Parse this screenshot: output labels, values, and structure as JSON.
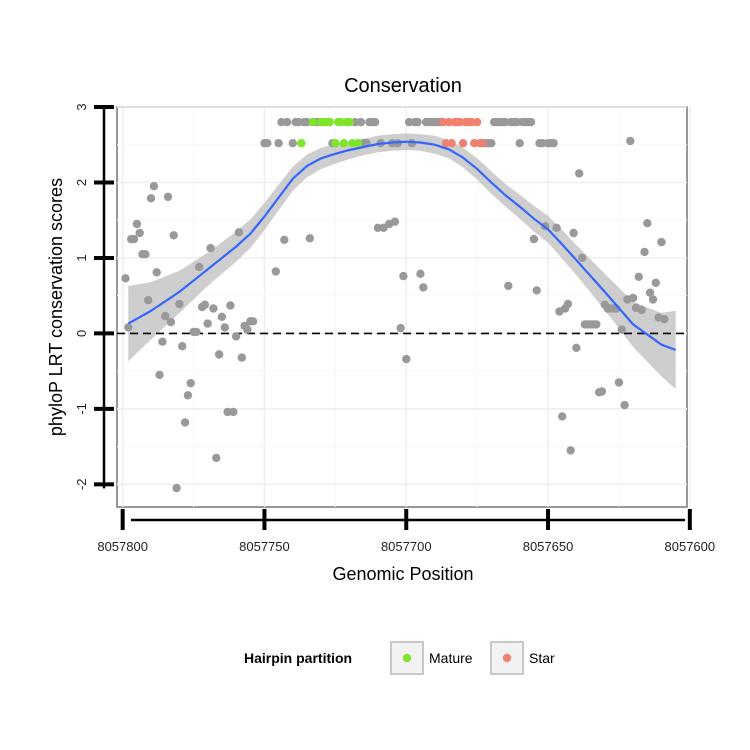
{
  "chart_data": {
    "type": "scatter",
    "title": "Conservation",
    "xlabel": "Genomic Position",
    "ylabel": "phyloP LRT conservation scores",
    "xlim": [
      8057802,
      8057601
    ],
    "ylim": [
      -2.3,
      3.0
    ],
    "x_reversed": true,
    "x_ticks": [
      8057800,
      8057750,
      8057700,
      8057650,
      8057600
    ],
    "x_tick_labels": [
      "8057800",
      "8057750",
      "8057700",
      "8057650",
      "8057600"
    ],
    "y_ticks": [
      3,
      2,
      1,
      0,
      -1,
      -2
    ],
    "y_tick_labels": [
      "3",
      "2",
      "1",
      "0",
      "-1",
      "-2"
    ],
    "reference_line": {
      "y": 0,
      "style": "dashed"
    },
    "colors": {
      "other": "#999999",
      "mature": "#7fe52a",
      "star": "#f08070",
      "smooth_line": "#3366ff",
      "confidence_band": "#bdbdbd"
    },
    "legend": {
      "title": "Hairpin partition",
      "position": "bottom",
      "entries": [
        {
          "label": "Mature",
          "color": "#7fe52a"
        },
        {
          "label": "Star",
          "color": "#f08070"
        }
      ]
    },
    "series": [
      {
        "name": "Other",
        "points": [
          [
            8057799,
            0.73
          ],
          [
            8057798,
            0.08
          ],
          [
            8057797,
            1.25
          ],
          [
            8057796,
            1.25
          ],
          [
            8057795,
            1.45
          ],
          [
            8057794,
            1.33
          ],
          [
            8057793,
            1.05
          ],
          [
            8057792,
            1.05
          ],
          [
            8057791,
            0.44
          ],
          [
            8057790,
            1.79
          ],
          [
            8057789,
            1.95
          ],
          [
            8057788,
            0.81
          ],
          [
            8057787,
            -0.55
          ],
          [
            8057786,
            -0.11
          ],
          [
            8057785,
            0.23
          ],
          [
            8057784,
            1.81
          ],
          [
            8057783,
            0.15
          ],
          [
            8057782,
            1.3
          ],
          [
            8057781,
            -2.05
          ],
          [
            8057780,
            0.39
          ],
          [
            8057779,
            -0.17
          ],
          [
            8057778,
            -1.18
          ],
          [
            8057777,
            -0.82
          ],
          [
            8057776,
            -0.66
          ],
          [
            8057775,
            0.02
          ],
          [
            8057774,
            0.02
          ],
          [
            8057773,
            0.88
          ],
          [
            8057772,
            0.35
          ],
          [
            8057771,
            0.38
          ],
          [
            8057770,
            0.13
          ],
          [
            8057769,
            1.13
          ],
          [
            8057768,
            0.33
          ],
          [
            8057767,
            -1.65
          ],
          [
            8057766,
            -0.28
          ],
          [
            8057765,
            0.22
          ],
          [
            8057764,
            0.08
          ],
          [
            8057763,
            -1.04
          ],
          [
            8057762,
            0.37
          ],
          [
            8057761,
            -1.04
          ],
          [
            8057760,
            -0.04
          ],
          [
            8057759,
            1.34
          ],
          [
            8057758,
            -0.32
          ],
          [
            8057757,
            0.1
          ],
          [
            8057756,
            0.05
          ],
          [
            8057755,
            0.16
          ],
          [
            8057754,
            0.16
          ],
          [
            8057750,
            2.52
          ],
          [
            8057749,
            2.52
          ],
          [
            8057746,
            0.82
          ],
          [
            8057745,
            2.52
          ],
          [
            8057744,
            2.8
          ],
          [
            8057743,
            1.24
          ],
          [
            8057742,
            2.8
          ],
          [
            8057740,
            2.52
          ],
          [
            8057739,
            2.8
          ],
          [
            8057738,
            2.8
          ],
          [
            8057736,
            2.8
          ],
          [
            8057735,
            2.8
          ],
          [
            8057734,
            1.26
          ],
          [
            8057732,
            2.8
          ],
          [
            8057731,
            2.8
          ],
          [
            8057726,
            2.52
          ],
          [
            8057718,
            2.8
          ],
          [
            8057716,
            2.8
          ],
          [
            8057715,
            2.52
          ],
          [
            8057714,
            2.52
          ],
          [
            8057713,
            2.8
          ],
          [
            8057712,
            2.8
          ],
          [
            8057711,
            2.8
          ],
          [
            8057710,
            1.4
          ],
          [
            8057709,
            2.52
          ],
          [
            8057708,
            1.4
          ],
          [
            8057706,
            1.45
          ],
          [
            8057705,
            2.52
          ],
          [
            8057704,
            1.48
          ],
          [
            8057703,
            2.52
          ],
          [
            8057702,
            0.07
          ],
          [
            8057701,
            0.76
          ],
          [
            8057700,
            -0.34
          ],
          [
            8057699,
            2.8
          ],
          [
            8057698,
            2.52
          ],
          [
            8057697,
            2.8
          ],
          [
            8057696,
            2.8
          ],
          [
            8057695,
            0.79
          ],
          [
            8057694,
            0.61
          ],
          [
            8057693,
            2.8
          ],
          [
            8057692,
            2.8
          ],
          [
            8057691,
            2.8
          ],
          [
            8057690,
            2.8
          ],
          [
            8057689,
            2.8
          ],
          [
            8057688,
            2.8
          ],
          [
            8057672,
            2.52
          ],
          [
            8057671,
            2.52
          ],
          [
            8057670,
            2.52
          ],
          [
            8057669,
            2.8
          ],
          [
            8057668,
            2.8
          ],
          [
            8057667,
            2.8
          ],
          [
            8057666,
            2.8
          ],
          [
            8057665,
            2.8
          ],
          [
            8057664,
            0.63
          ],
          [
            8057663,
            2.8
          ],
          [
            8057662,
            2.8
          ],
          [
            8057661,
            2.8
          ],
          [
            8057660,
            2.52
          ],
          [
            8057659,
            2.8
          ],
          [
            8057658,
            2.8
          ],
          [
            8057657,
            2.8
          ],
          [
            8057656,
            2.8
          ],
          [
            8057655,
            1.25
          ],
          [
            8057654,
            0.57
          ],
          [
            8057653,
            2.52
          ],
          [
            8057652,
            2.52
          ],
          [
            8057651,
            1.42
          ],
          [
            8057650,
            2.52
          ],
          [
            8057649,
            2.52
          ],
          [
            8057648,
            2.52
          ],
          [
            8057647,
            1.4
          ],
          [
            8057646,
            0.29
          ],
          [
            8057645,
            -1.1
          ],
          [
            8057644,
            0.33
          ],
          [
            8057643,
            0.39
          ],
          [
            8057642,
            -1.55
          ],
          [
            8057641,
            1.33
          ],
          [
            8057640,
            -0.19
          ],
          [
            8057639,
            2.12
          ],
          [
            8057638,
            1.0
          ],
          [
            8057637,
            0.12
          ],
          [
            8057636,
            0.12
          ],
          [
            8057635,
            0.12
          ],
          [
            8057634,
            0.12
          ],
          [
            8057633,
            0.12
          ],
          [
            8057632,
            -0.78
          ],
          [
            8057631,
            -0.77
          ],
          [
            8057630,
            0.38
          ],
          [
            8057629,
            0.33
          ],
          [
            8057628,
            0.33
          ],
          [
            8057627,
            0.33
          ],
          [
            8057626,
            0.33
          ],
          [
            8057625,
            -0.65
          ],
          [
            8057624,
            0.05
          ],
          [
            8057623,
            -0.95
          ],
          [
            8057622,
            0.45
          ],
          [
            8057621,
            2.55
          ],
          [
            8057620,
            0.47
          ],
          [
            8057619,
            0.34
          ],
          [
            8057618,
            0.75
          ],
          [
            8057617,
            0.31
          ],
          [
            8057616,
            1.08
          ],
          [
            8057615,
            1.46
          ],
          [
            8057614,
            0.54
          ],
          [
            8057613,
            0.45
          ],
          [
            8057612,
            0.67
          ],
          [
            8057611,
            0.21
          ],
          [
            8057610,
            1.21
          ],
          [
            8057609,
            0.19
          ]
        ]
      },
      {
        "name": "Mature",
        "points": [
          [
            8057737,
            2.52
          ],
          [
            8057733,
            2.8
          ],
          [
            8057730,
            2.8
          ],
          [
            8057729,
            2.8
          ],
          [
            8057728,
            2.8
          ],
          [
            8057727,
            2.8
          ],
          [
            8057725,
            2.52
          ],
          [
            8057724,
            2.8
          ],
          [
            8057723,
            2.8
          ],
          [
            8057722,
            2.52
          ],
          [
            8057721,
            2.8
          ],
          [
            8057720,
            2.8
          ],
          [
            8057719,
            2.52
          ],
          [
            8057717,
            2.52
          ]
        ]
      },
      {
        "name": "Star",
        "points": [
          [
            8057687,
            2.8
          ],
          [
            8057686,
            2.52
          ],
          [
            8057685,
            2.8
          ],
          [
            8057684,
            2.52
          ],
          [
            8057683,
            2.8
          ],
          [
            8057682,
            2.8
          ],
          [
            8057681,
            2.8
          ],
          [
            8057680,
            2.52
          ],
          [
            8057679,
            2.8
          ],
          [
            8057678,
            2.8
          ],
          [
            8057677,
            2.8
          ],
          [
            8057676,
            2.52
          ],
          [
            8057675,
            2.8
          ],
          [
            8057674,
            2.52
          ],
          [
            8057673,
            2.52
          ]
        ]
      }
    ],
    "smooth": {
      "x": [
        8057798,
        8057790,
        8057780,
        8057770,
        8057760,
        8057755,
        8057750,
        8057745,
        8057740,
        8057735,
        8057730,
        8057725,
        8057720,
        8057715,
        8057710,
        8057705,
        8057700,
        8057695,
        8057690,
        8057685,
        8057680,
        8057675,
        8057670,
        8057665,
        8057660,
        8057655,
        8057650,
        8057645,
        8057640,
        8057630,
        8057620,
        8057610,
        8057605
      ],
      "y": [
        0.13,
        0.3,
        0.55,
        0.85,
        1.15,
        1.32,
        1.55,
        1.8,
        2.05,
        2.22,
        2.32,
        2.38,
        2.43,
        2.47,
        2.51,
        2.53,
        2.54,
        2.53,
        2.5,
        2.44,
        2.33,
        2.18,
        2.0,
        1.83,
        1.68,
        1.52,
        1.38,
        1.18,
        0.97,
        0.55,
        0.12,
        -0.15,
        -0.22
      ],
      "band_half_width": [
        0.5,
        0.38,
        0.28,
        0.22,
        0.2,
        0.19,
        0.18,
        0.17,
        0.16,
        0.15,
        0.14,
        0.13,
        0.12,
        0.11,
        0.11,
        0.11,
        0.11,
        0.11,
        0.12,
        0.12,
        0.13,
        0.14,
        0.15,
        0.15,
        0.16,
        0.17,
        0.18,
        0.19,
        0.2,
        0.24,
        0.3,
        0.42,
        0.52
      ]
    }
  }
}
